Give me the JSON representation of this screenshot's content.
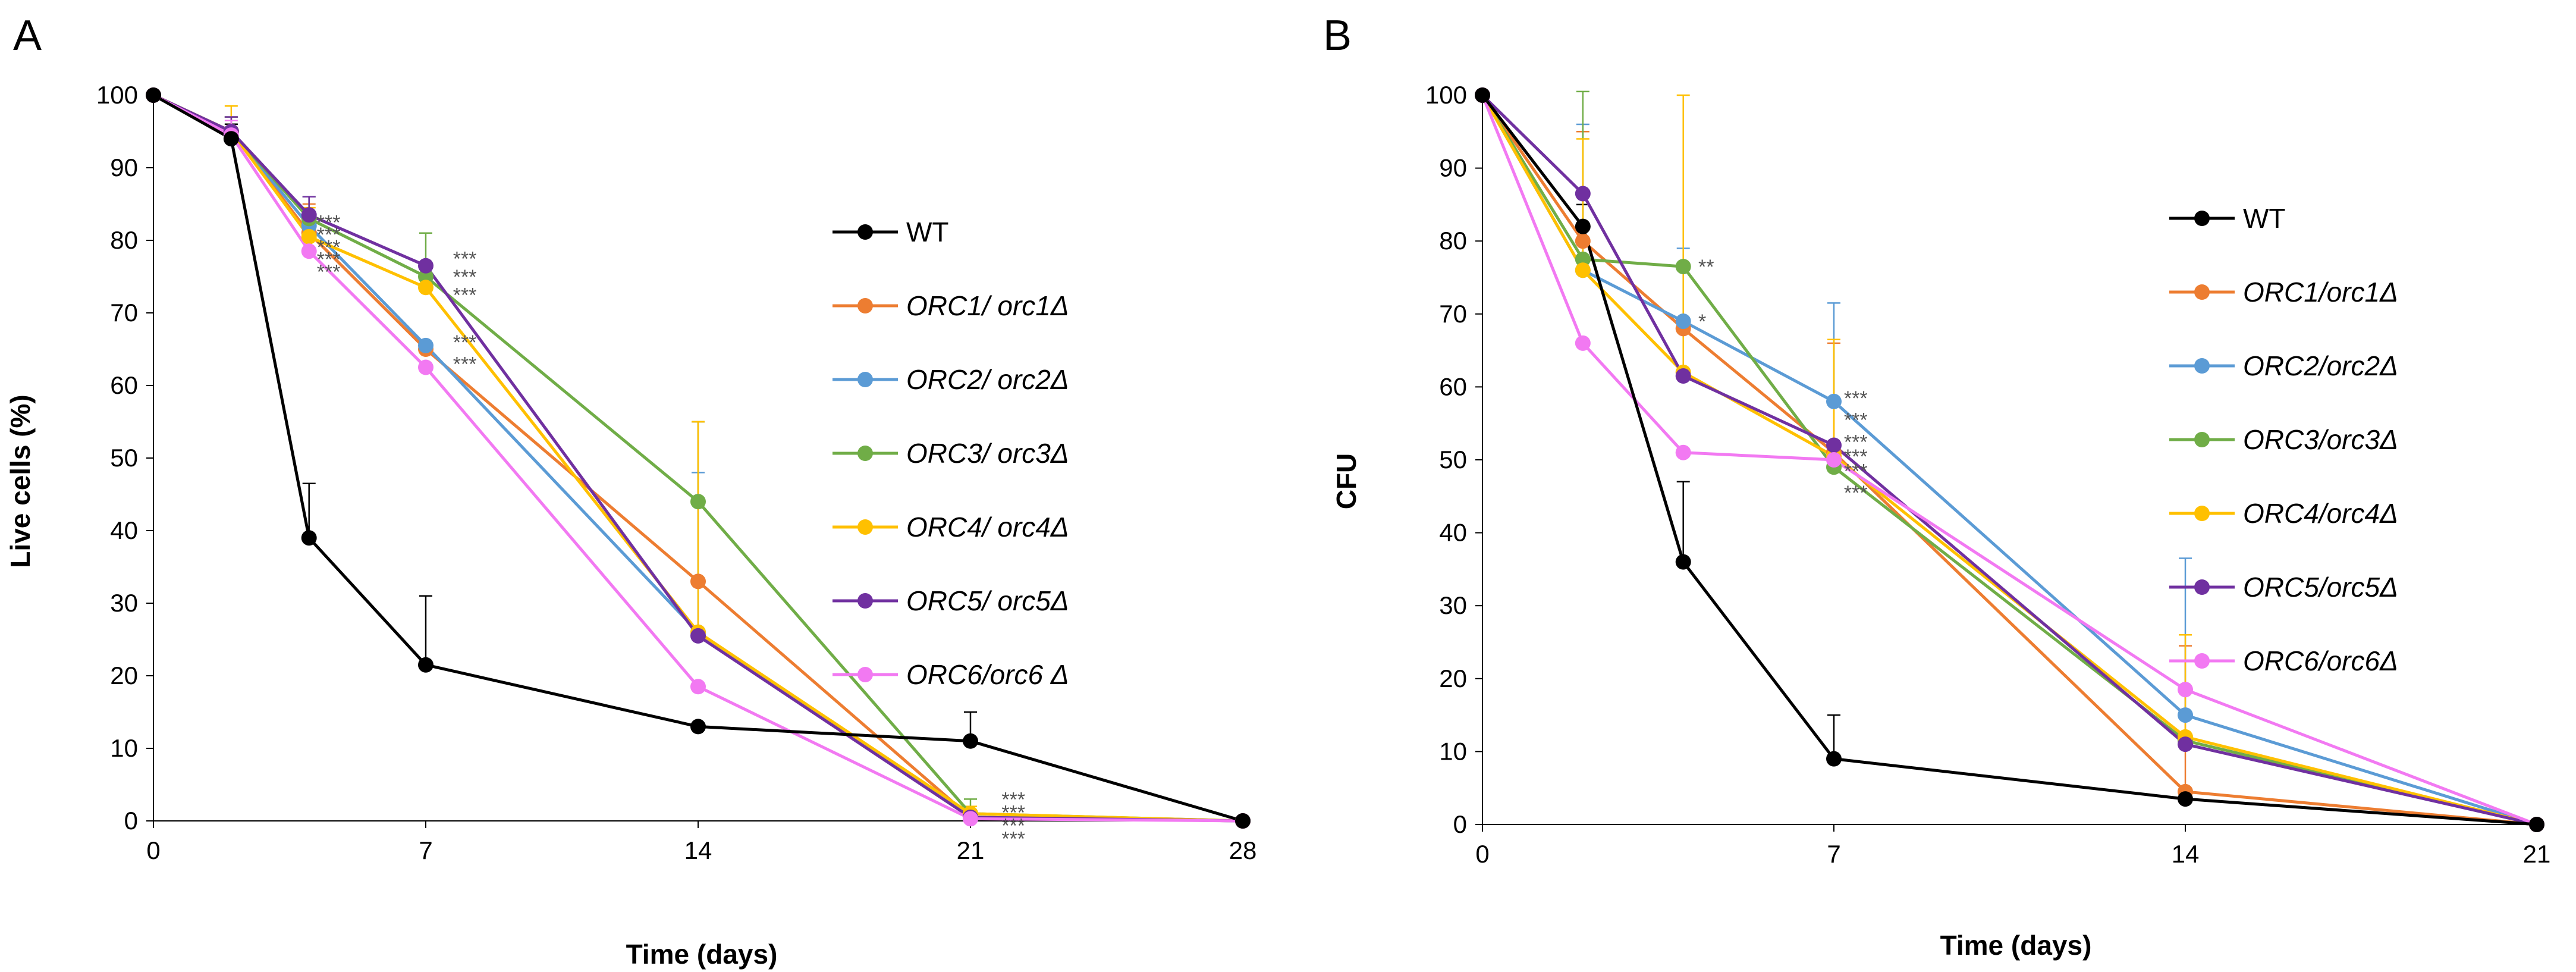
{
  "chart_data": [
    {
      "panel": "A",
      "type": "line",
      "ylabel": "Live cells (%)",
      "xlabel": "Time (days)",
      "ylim": [
        0,
        100
      ],
      "yticks": [
        0,
        10,
        20,
        30,
        40,
        50,
        60,
        70,
        80,
        90,
        100
      ],
      "xlim": [
        0,
        28
      ],
      "xticks": [
        0,
        7,
        14,
        21,
        28
      ],
      "legend_position": "right",
      "series": [
        {
          "name": "WT",
          "italic": false,
          "color": "#000000",
          "x": [
            0,
            2,
            4,
            7,
            14,
            21,
            28
          ],
          "y": [
            100,
            94,
            39,
            21.5,
            13,
            11,
            0
          ],
          "err": [
            0,
            2,
            7.5,
            9.5,
            0,
            4,
            0
          ]
        },
        {
          "name": "ORC1/ orc1Δ",
          "italic": true,
          "color": "#ED7D31",
          "x": [
            0,
            2,
            4,
            7,
            14,
            21,
            28
          ],
          "y": [
            100,
            95,
            81,
            65,
            33,
            0.5,
            0
          ],
          "err": [
            0,
            2,
            4,
            0,
            22,
            1,
            0
          ]
        },
        {
          "name": "ORC2/ orc2Δ",
          "italic": true,
          "color": "#5B9BD5",
          "x": [
            0,
            2,
            4,
            7,
            14,
            21,
            28
          ],
          "y": [
            100,
            95,
            82,
            65.5,
            26,
            0.5,
            0
          ],
          "err": [
            0,
            2,
            4,
            0,
            22,
            1,
            0
          ]
        },
        {
          "name": "ORC3/ orc3Δ",
          "italic": true,
          "color": "#70AD47",
          "x": [
            0,
            2,
            4,
            7,
            14,
            21,
            28
          ],
          "y": [
            100,
            95,
            83,
            75,
            44,
            1,
            0
          ],
          "err": [
            0,
            2,
            3,
            6,
            11,
            2,
            0
          ]
        },
        {
          "name": "ORC4/ orc4Δ",
          "italic": true,
          "color": "#FFC000",
          "x": [
            0,
            2,
            4,
            7,
            14,
            21,
            28
          ],
          "y": [
            100,
            95,
            80.5,
            73.5,
            26,
            1,
            0
          ],
          "err": [
            0,
            3.5,
            4,
            0,
            29,
            1,
            0
          ]
        },
        {
          "name": "ORC5/ orc5Δ",
          "italic": true,
          "color": "#7030A0",
          "x": [
            0,
            2,
            4,
            7,
            14,
            21,
            28
          ],
          "y": [
            100,
            95,
            83.5,
            76.5,
            25.5,
            0.5,
            0
          ],
          "err": [
            0,
            2,
            2.5,
            0,
            0,
            1,
            0
          ]
        },
        {
          "name": "ORC6/orc6  Δ",
          "italic": true,
          "color": "#F279F2",
          "x": [
            0,
            2,
            4,
            7,
            14,
            21,
            28
          ],
          "y": [
            100,
            94.5,
            78.5,
            62.5,
            18.5,
            0.3,
            0
          ],
          "err": [
            0,
            2,
            3,
            0,
            0,
            1,
            0
          ]
        }
      ],
      "annotations": [
        {
          "text": "***",
          "x": 4.2,
          "y": 82.5
        },
        {
          "text": "***",
          "x": 4.2,
          "y": 80.8
        },
        {
          "text": "***",
          "x": 4.2,
          "y": 79.1
        },
        {
          "text": "***",
          "x": 4.2,
          "y": 77.4
        },
        {
          "text": "***",
          "x": 4.2,
          "y": 75.7
        },
        {
          "text": "***",
          "x": 7.7,
          "y": 77.5
        },
        {
          "text": "***",
          "x": 7.7,
          "y": 75
        },
        {
          "text": "***",
          "x": 7.7,
          "y": 72.5
        },
        {
          "text": "***",
          "x": 7.7,
          "y": 66
        },
        {
          "text": "***",
          "x": 7.7,
          "y": 63
        },
        {
          "text": "***",
          "x": 21.8,
          "y": 3
        },
        {
          "text": "***",
          "x": 21.8,
          "y": 1.2
        },
        {
          "text": "***",
          "x": 21.8,
          "y": -0.6
        },
        {
          "text": "***",
          "x": 21.8,
          "y": -2.4
        }
      ]
    },
    {
      "panel": "B",
      "type": "line",
      "ylabel": "CFU",
      "xlabel": "Time (days)",
      "ylim": [
        0,
        100
      ],
      "yticks": [
        0,
        10,
        20,
        30,
        40,
        50,
        60,
        70,
        80,
        90,
        100
      ],
      "xlim": [
        0,
        21
      ],
      "xticks": [
        0,
        7,
        14,
        21
      ],
      "legend_position": "right",
      "series": [
        {
          "name": "WT",
          "italic": false,
          "color": "#000000",
          "x": [
            0,
            2,
            4,
            7,
            14,
            21
          ],
          "y": [
            100,
            82,
            36,
            9,
            3.5,
            0
          ],
          "err": [
            0,
            3,
            11,
            6,
            0,
            0
          ]
        },
        {
          "name": "ORC1/orc1Δ",
          "italic": true,
          "color": "#ED7D31",
          "x": [
            0,
            2,
            4,
            7,
            14,
            21
          ],
          "y": [
            100,
            80,
            68,
            51,
            4.5,
            0
          ],
          "err": [
            0,
            15,
            0,
            15,
            20,
            0
          ]
        },
        {
          "name": "ORC2/orc2Δ",
          "italic": true,
          "color": "#5B9BD5",
          "x": [
            0,
            2,
            4,
            7,
            14,
            21
          ],
          "y": [
            100,
            76,
            69,
            58,
            15,
            0
          ],
          "err": [
            0,
            20,
            10,
            13.5,
            21.5,
            0
          ]
        },
        {
          "name": "ORC3/orc3Δ",
          "italic": true,
          "color": "#70AD47",
          "x": [
            0,
            2,
            4,
            7,
            14,
            21
          ],
          "y": [
            100,
            77.5,
            76.5,
            49,
            11.5,
            0
          ],
          "err": [
            0,
            23,
            0,
            0,
            0,
            0
          ]
        },
        {
          "name": "ORC4/orc4Δ",
          "italic": true,
          "color": "#FFC000",
          "x": [
            0,
            2,
            4,
            7,
            14,
            21
          ],
          "y": [
            100,
            76,
            62,
            50.5,
            12,
            0
          ],
          "err": [
            0,
            18,
            38,
            16,
            14,
            0
          ]
        },
        {
          "name": "ORC5/orc5Δ",
          "italic": true,
          "color": "#7030A0",
          "x": [
            0,
            2,
            4,
            7,
            14,
            21
          ],
          "y": [
            100,
            86.5,
            61.5,
            52,
            11,
            0
          ],
          "err": [
            0,
            0,
            0,
            0,
            0,
            0
          ]
        },
        {
          "name": "ORC6/orc6Δ",
          "italic": true,
          "color": "#F279F2",
          "x": [
            0,
            2,
            4,
            7,
            14,
            21
          ],
          "y": [
            100,
            66,
            51,
            50,
            18.5,
            0
          ],
          "err": [
            0,
            0,
            0,
            0,
            0,
            0
          ]
        }
      ],
      "annotations": [
        {
          "text": "**",
          "x": 4.3,
          "y": 76.5
        },
        {
          "text": "*",
          "x": 4.3,
          "y": 69
        },
        {
          "text": "***",
          "x": 7.2,
          "y": 58.5
        },
        {
          "text": "***",
          "x": 7.2,
          "y": 55.5
        },
        {
          "text": "***",
          "x": 7.2,
          "y": 52.5
        },
        {
          "text": "***",
          "x": 7.2,
          "y": 50.5
        },
        {
          "text": "***",
          "x": 7.2,
          "y": 48.5
        },
        {
          "text": "***",
          "x": 7.2,
          "y": 45.5
        }
      ]
    }
  ]
}
